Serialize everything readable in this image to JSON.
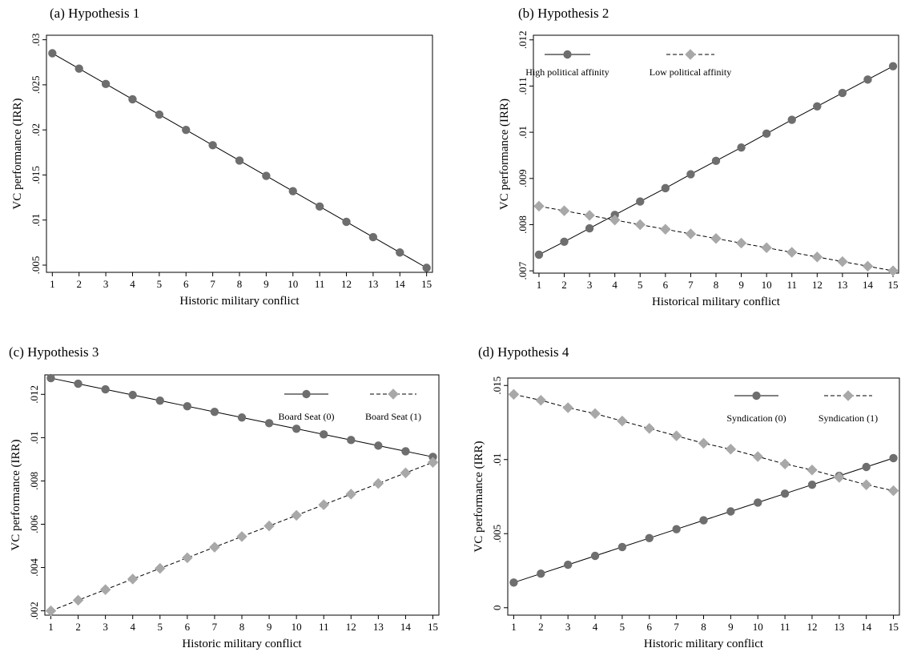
{
  "chart_data": [
    {
      "type": "line",
      "title": "(a) Hypothesis 1",
      "xlabel": "Historic military conflict",
      "ylabel": "VC performance (IRR)",
      "x": [
        1,
        2,
        3,
        4,
        5,
        6,
        7,
        8,
        9,
        10,
        11,
        12,
        13,
        14,
        15
      ],
      "xticks": [
        "1",
        "2",
        "3",
        "4",
        "5",
        "6",
        "7",
        "8",
        "9",
        "10",
        "11",
        "12",
        "13",
        "14",
        "15"
      ],
      "ylim": [
        0.0042,
        0.0305
      ],
      "yticks": [
        0.005,
        0.01,
        0.015,
        0.02,
        0.025,
        0.03
      ],
      "yticklabels": [
        ".005",
        ".01",
        ".015",
        ".02",
        ".025",
        ".03"
      ],
      "legend": "none",
      "series": [
        {
          "name": "",
          "marker": "circle",
          "color": "#6e6e6e",
          "dash": false,
          "values": [
            0.0285,
            0.0268,
            0.0251,
            0.0234,
            0.0217,
            0.02,
            0.0183,
            0.0166,
            0.0149,
            0.0132,
            0.0115,
            0.0098,
            0.0081,
            0.0064,
            0.0047
          ]
        }
      ]
    },
    {
      "type": "line",
      "title": "(b) Hypothesis 2",
      "xlabel": "Historical military conflict",
      "ylabel": "VC performance (IRR)",
      "x": [
        1,
        2,
        3,
        4,
        5,
        6,
        7,
        8,
        9,
        10,
        11,
        12,
        13,
        14,
        15
      ],
      "xticks": [
        "1",
        "2",
        "3",
        "4",
        "5",
        "6",
        "7",
        "8",
        "9",
        "10",
        "11",
        "12",
        "13",
        "14",
        "15"
      ],
      "ylim": [
        0.00695,
        0.0121
      ],
      "yticks": [
        0.007,
        0.008,
        0.009,
        0.01,
        0.011,
        0.012
      ],
      "yticklabels": [
        ".007",
        ".008",
        ".009",
        ".01",
        ".011",
        ".012"
      ],
      "legend": "top-left",
      "series": [
        {
          "name": "High political affinity",
          "marker": "circle",
          "color": "#6e6e6e",
          "dash": false,
          "values": [
            0.00735,
            0.00763,
            0.00792,
            0.00821,
            0.0085,
            0.00879,
            0.00909,
            0.00938,
            0.00967,
            0.00997,
            0.01027,
            0.01056,
            0.01085,
            0.01114,
            0.01143
          ]
        },
        {
          "name": "Low political affinity",
          "marker": "diamond",
          "color": "#a8a8a8",
          "dash": true,
          "values": [
            0.0084,
            0.0083,
            0.0082,
            0.0081,
            0.008,
            0.0079,
            0.0078,
            0.0077,
            0.0076,
            0.0075,
            0.0074,
            0.0073,
            0.0072,
            0.0071,
            0.007
          ]
        }
      ]
    },
    {
      "type": "line",
      "title": "(c) Hypothesis 3",
      "xlabel": "Historic military conflict",
      "ylabel": "VC performance (IRR)",
      "x": [
        1,
        2,
        3,
        4,
        5,
        6,
        7,
        8,
        9,
        10,
        11,
        12,
        13,
        14,
        15
      ],
      "xticks": [
        "1",
        "2",
        "3",
        "4",
        "5",
        "6",
        "7",
        "8",
        "9",
        "10",
        "11",
        "12",
        "13",
        "14",
        "15"
      ],
      "ylim": [
        0.0018,
        0.0129
      ],
      "yticks": [
        0.002,
        0.004,
        0.006,
        0.008,
        0.01,
        0.012
      ],
      "yticklabels": [
        ".002",
        ".004",
        ".006",
        ".008",
        ".01",
        ".012"
      ],
      "legend": "top-right",
      "series": [
        {
          "name": "Board Seat (0)",
          "marker": "circle",
          "color": "#6e6e6e",
          "dash": false,
          "values": [
            0.01275,
            0.01249,
            0.01223,
            0.01197,
            0.01171,
            0.01145,
            0.01119,
            0.01093,
            0.01067,
            0.01041,
            0.01015,
            0.00989,
            0.00963,
            0.00937,
            0.00911
          ]
        },
        {
          "name": "Board Seat (1)",
          "marker": "diamond",
          "color": "#a8a8a8",
          "dash": true,
          "values": [
            0.002,
            0.00249,
            0.00298,
            0.00347,
            0.00396,
            0.00445,
            0.00494,
            0.00543,
            0.00592,
            0.00641,
            0.0069,
            0.00739,
            0.00788,
            0.00837,
            0.00886
          ]
        }
      ]
    },
    {
      "type": "line",
      "title": "(d) Hypothesis 4",
      "xlabel": "Historic military conflict",
      "ylabel": "VC performance (IRR)",
      "x": [
        1,
        2,
        3,
        4,
        5,
        6,
        7,
        8,
        9,
        10,
        11,
        12,
        13,
        14,
        15
      ],
      "xticks": [
        "1",
        "2",
        "3",
        "4",
        "5",
        "6",
        "7",
        "8",
        "9",
        "10",
        "11",
        "12",
        "13",
        "14",
        "15"
      ],
      "ylim": [
        -0.0005,
        0.0155
      ],
      "yticks": [
        0,
        0.005,
        0.01,
        0.015
      ],
      "yticklabels": [
        "0",
        ".005",
        ".01",
        ".015"
      ],
      "legend": "top-right",
      "series": [
        {
          "name": "Syndication (0)",
          "marker": "circle",
          "color": "#6e6e6e",
          "dash": false,
          "values": [
            0.0017,
            0.0023,
            0.0029,
            0.0035,
            0.0041,
            0.0047,
            0.0053,
            0.0059,
            0.0065,
            0.0071,
            0.0077,
            0.0083,
            0.0089,
            0.0095,
            0.0101
          ]
        },
        {
          "name": "Syndication (1)",
          "marker": "diamond",
          "color": "#a8a8a8",
          "dash": true,
          "values": [
            0.0144,
            0.014,
            0.0135,
            0.0131,
            0.0126,
            0.0121,
            0.0116,
            0.0111,
            0.0107,
            0.0102,
            0.0097,
            0.0093,
            0.0088,
            0.0083,
            0.0079
          ]
        }
      ]
    }
  ]
}
